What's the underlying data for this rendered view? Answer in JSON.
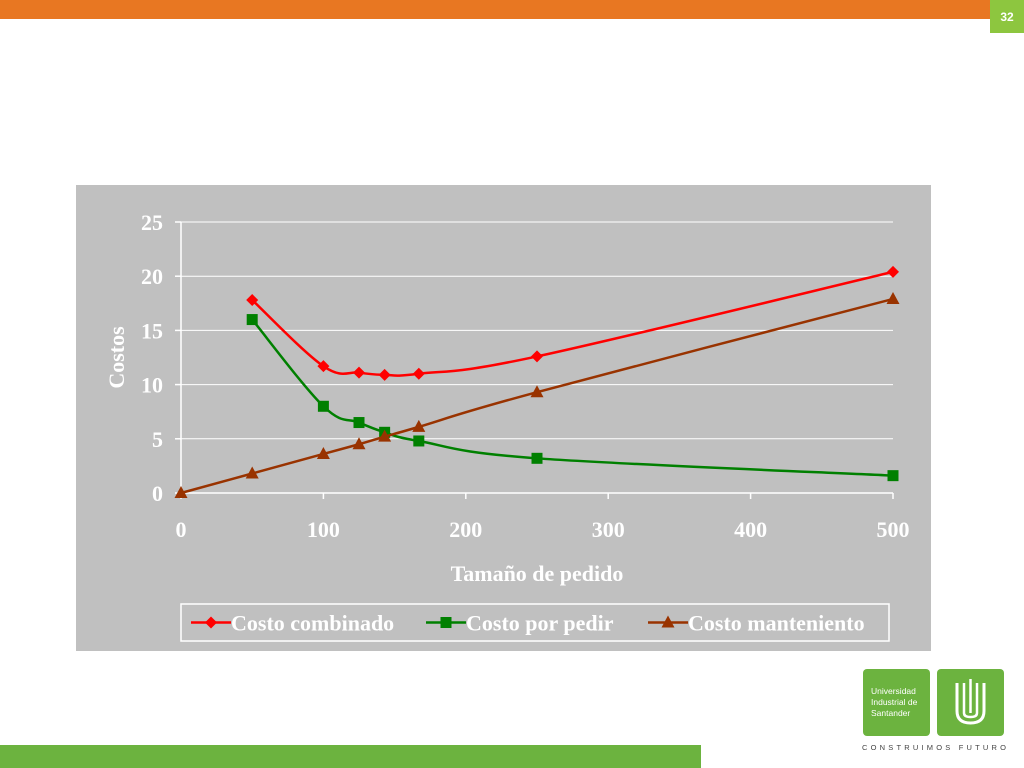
{
  "slide": {
    "page_number": "32",
    "logo": {
      "line1": "Universidad",
      "line2": "Industrial de",
      "line3": "Santander",
      "tagline": "CONSTRUIMOS FUTURO"
    }
  },
  "colors": {
    "top_bar": "#e87722",
    "bottom_bar": "#6cb33f",
    "chart_background": "#c0c0c0"
  },
  "chart_data": {
    "type": "line",
    "xlabel": "Tamaño de pedido",
    "ylabel": "Costos",
    "xlim": [
      0,
      500
    ],
    "ylim": [
      0,
      25
    ],
    "xticks": [
      0,
      100,
      200,
      300,
      400,
      500
    ],
    "yticks": [
      0,
      5,
      10,
      15,
      20,
      25
    ],
    "grid": true,
    "legend_position": "bottom",
    "series": [
      {
        "name": "Costo combinado",
        "color": "#ff0000",
        "marker": "diamond",
        "points": [
          [
            50,
            17.8
          ],
          [
            100,
            11.7
          ],
          [
            125,
            11.1
          ],
          [
            143,
            10.9
          ],
          [
            167,
            11.0
          ],
          [
            250,
            12.6
          ],
          [
            500,
            20.4
          ]
        ]
      },
      {
        "name": "Costo por pedir",
        "color": "#008000",
        "marker": "square",
        "points": [
          [
            50,
            16.0
          ],
          [
            100,
            8.0
          ],
          [
            125,
            6.5
          ],
          [
            143,
            5.6
          ],
          [
            167,
            4.8
          ],
          [
            250,
            3.2
          ],
          [
            500,
            1.6
          ]
        ]
      },
      {
        "name": "Costo manteniento",
        "color": "#993300",
        "marker": "triangle",
        "points": [
          [
            0,
            0
          ],
          [
            50,
            1.8
          ],
          [
            100,
            3.6
          ],
          [
            125,
            4.5
          ],
          [
            143,
            5.2
          ],
          [
            167,
            6.1
          ],
          [
            250,
            9.3
          ],
          [
            500,
            17.9
          ]
        ]
      }
    ]
  }
}
